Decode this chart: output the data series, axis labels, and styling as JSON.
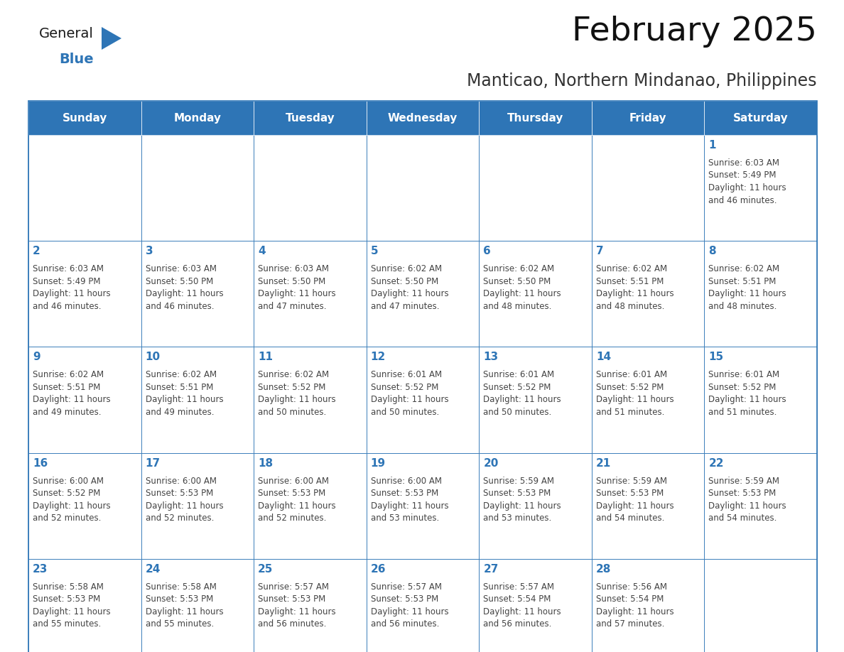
{
  "title": "February 2025",
  "subtitle": "Manticao, Northern Mindanao, Philippines",
  "header_bg": "#2E75B6",
  "header_text_color": "#FFFFFF",
  "cell_bg": "#FFFFFF",
  "border_color": "#2E75B6",
  "day_number_color": "#2E75B6",
  "cell_text_color": "#444444",
  "days_of_week": [
    "Sunday",
    "Monday",
    "Tuesday",
    "Wednesday",
    "Thursday",
    "Friday",
    "Saturday"
  ],
  "calendar": [
    [
      null,
      null,
      null,
      null,
      null,
      null,
      {
        "day": 1,
        "sunrise": "6:03 AM",
        "sunset": "5:49 PM",
        "daylight_line1": "11 hours",
        "daylight_line2": "and 46 minutes."
      }
    ],
    [
      {
        "day": 2,
        "sunrise": "6:03 AM",
        "sunset": "5:49 PM",
        "daylight_line1": "11 hours",
        "daylight_line2": "and 46 minutes."
      },
      {
        "day": 3,
        "sunrise": "6:03 AM",
        "sunset": "5:50 PM",
        "daylight_line1": "11 hours",
        "daylight_line2": "and 46 minutes."
      },
      {
        "day": 4,
        "sunrise": "6:03 AM",
        "sunset": "5:50 PM",
        "daylight_line1": "11 hours",
        "daylight_line2": "and 47 minutes."
      },
      {
        "day": 5,
        "sunrise": "6:02 AM",
        "sunset": "5:50 PM",
        "daylight_line1": "11 hours",
        "daylight_line2": "and 47 minutes."
      },
      {
        "day": 6,
        "sunrise": "6:02 AM",
        "sunset": "5:50 PM",
        "daylight_line1": "11 hours",
        "daylight_line2": "and 48 minutes."
      },
      {
        "day": 7,
        "sunrise": "6:02 AM",
        "sunset": "5:51 PM",
        "daylight_line1": "11 hours",
        "daylight_line2": "and 48 minutes."
      },
      {
        "day": 8,
        "sunrise": "6:02 AM",
        "sunset": "5:51 PM",
        "daylight_line1": "11 hours",
        "daylight_line2": "and 48 minutes."
      }
    ],
    [
      {
        "day": 9,
        "sunrise": "6:02 AM",
        "sunset": "5:51 PM",
        "daylight_line1": "11 hours",
        "daylight_line2": "and 49 minutes."
      },
      {
        "day": 10,
        "sunrise": "6:02 AM",
        "sunset": "5:51 PM",
        "daylight_line1": "11 hours",
        "daylight_line2": "and 49 minutes."
      },
      {
        "day": 11,
        "sunrise": "6:02 AM",
        "sunset": "5:52 PM",
        "daylight_line1": "11 hours",
        "daylight_line2": "and 50 minutes."
      },
      {
        "day": 12,
        "sunrise": "6:01 AM",
        "sunset": "5:52 PM",
        "daylight_line1": "11 hours",
        "daylight_line2": "and 50 minutes."
      },
      {
        "day": 13,
        "sunrise": "6:01 AM",
        "sunset": "5:52 PM",
        "daylight_line1": "11 hours",
        "daylight_line2": "and 50 minutes."
      },
      {
        "day": 14,
        "sunrise": "6:01 AM",
        "sunset": "5:52 PM",
        "daylight_line1": "11 hours",
        "daylight_line2": "and 51 minutes."
      },
      {
        "day": 15,
        "sunrise": "6:01 AM",
        "sunset": "5:52 PM",
        "daylight_line1": "11 hours",
        "daylight_line2": "and 51 minutes."
      }
    ],
    [
      {
        "day": 16,
        "sunrise": "6:00 AM",
        "sunset": "5:52 PM",
        "daylight_line1": "11 hours",
        "daylight_line2": "and 52 minutes."
      },
      {
        "day": 17,
        "sunrise": "6:00 AM",
        "sunset": "5:53 PM",
        "daylight_line1": "11 hours",
        "daylight_line2": "and 52 minutes."
      },
      {
        "day": 18,
        "sunrise": "6:00 AM",
        "sunset": "5:53 PM",
        "daylight_line1": "11 hours",
        "daylight_line2": "and 52 minutes."
      },
      {
        "day": 19,
        "sunrise": "6:00 AM",
        "sunset": "5:53 PM",
        "daylight_line1": "11 hours",
        "daylight_line2": "and 53 minutes."
      },
      {
        "day": 20,
        "sunrise": "5:59 AM",
        "sunset": "5:53 PM",
        "daylight_line1": "11 hours",
        "daylight_line2": "and 53 minutes."
      },
      {
        "day": 21,
        "sunrise": "5:59 AM",
        "sunset": "5:53 PM",
        "daylight_line1": "11 hours",
        "daylight_line2": "and 54 minutes."
      },
      {
        "day": 22,
        "sunrise": "5:59 AM",
        "sunset": "5:53 PM",
        "daylight_line1": "11 hours",
        "daylight_line2": "and 54 minutes."
      }
    ],
    [
      {
        "day": 23,
        "sunrise": "5:58 AM",
        "sunset": "5:53 PM",
        "daylight_line1": "11 hours",
        "daylight_line2": "and 55 minutes."
      },
      {
        "day": 24,
        "sunrise": "5:58 AM",
        "sunset": "5:53 PM",
        "daylight_line1": "11 hours",
        "daylight_line2": "and 55 minutes."
      },
      {
        "day": 25,
        "sunrise": "5:57 AM",
        "sunset": "5:53 PM",
        "daylight_line1": "11 hours",
        "daylight_line2": "and 56 minutes."
      },
      {
        "day": 26,
        "sunrise": "5:57 AM",
        "sunset": "5:53 PM",
        "daylight_line1": "11 hours",
        "daylight_line2": "and 56 minutes."
      },
      {
        "day": 27,
        "sunrise": "5:57 AM",
        "sunset": "5:54 PM",
        "daylight_line1": "11 hours",
        "daylight_line2": "and 56 minutes."
      },
      {
        "day": 28,
        "sunrise": "5:56 AM",
        "sunset": "5:54 PM",
        "daylight_line1": "11 hours",
        "daylight_line2": "and 57 minutes."
      },
      null
    ]
  ],
  "logo_color_general": "#1a1a1a",
  "logo_color_blue": "#2E75B6",
  "logo_triangle_color": "#2E75B6",
  "title_fontsize": 34,
  "subtitle_fontsize": 17,
  "header_fontsize": 11,
  "day_num_fontsize": 11,
  "cell_fontsize": 8.5
}
